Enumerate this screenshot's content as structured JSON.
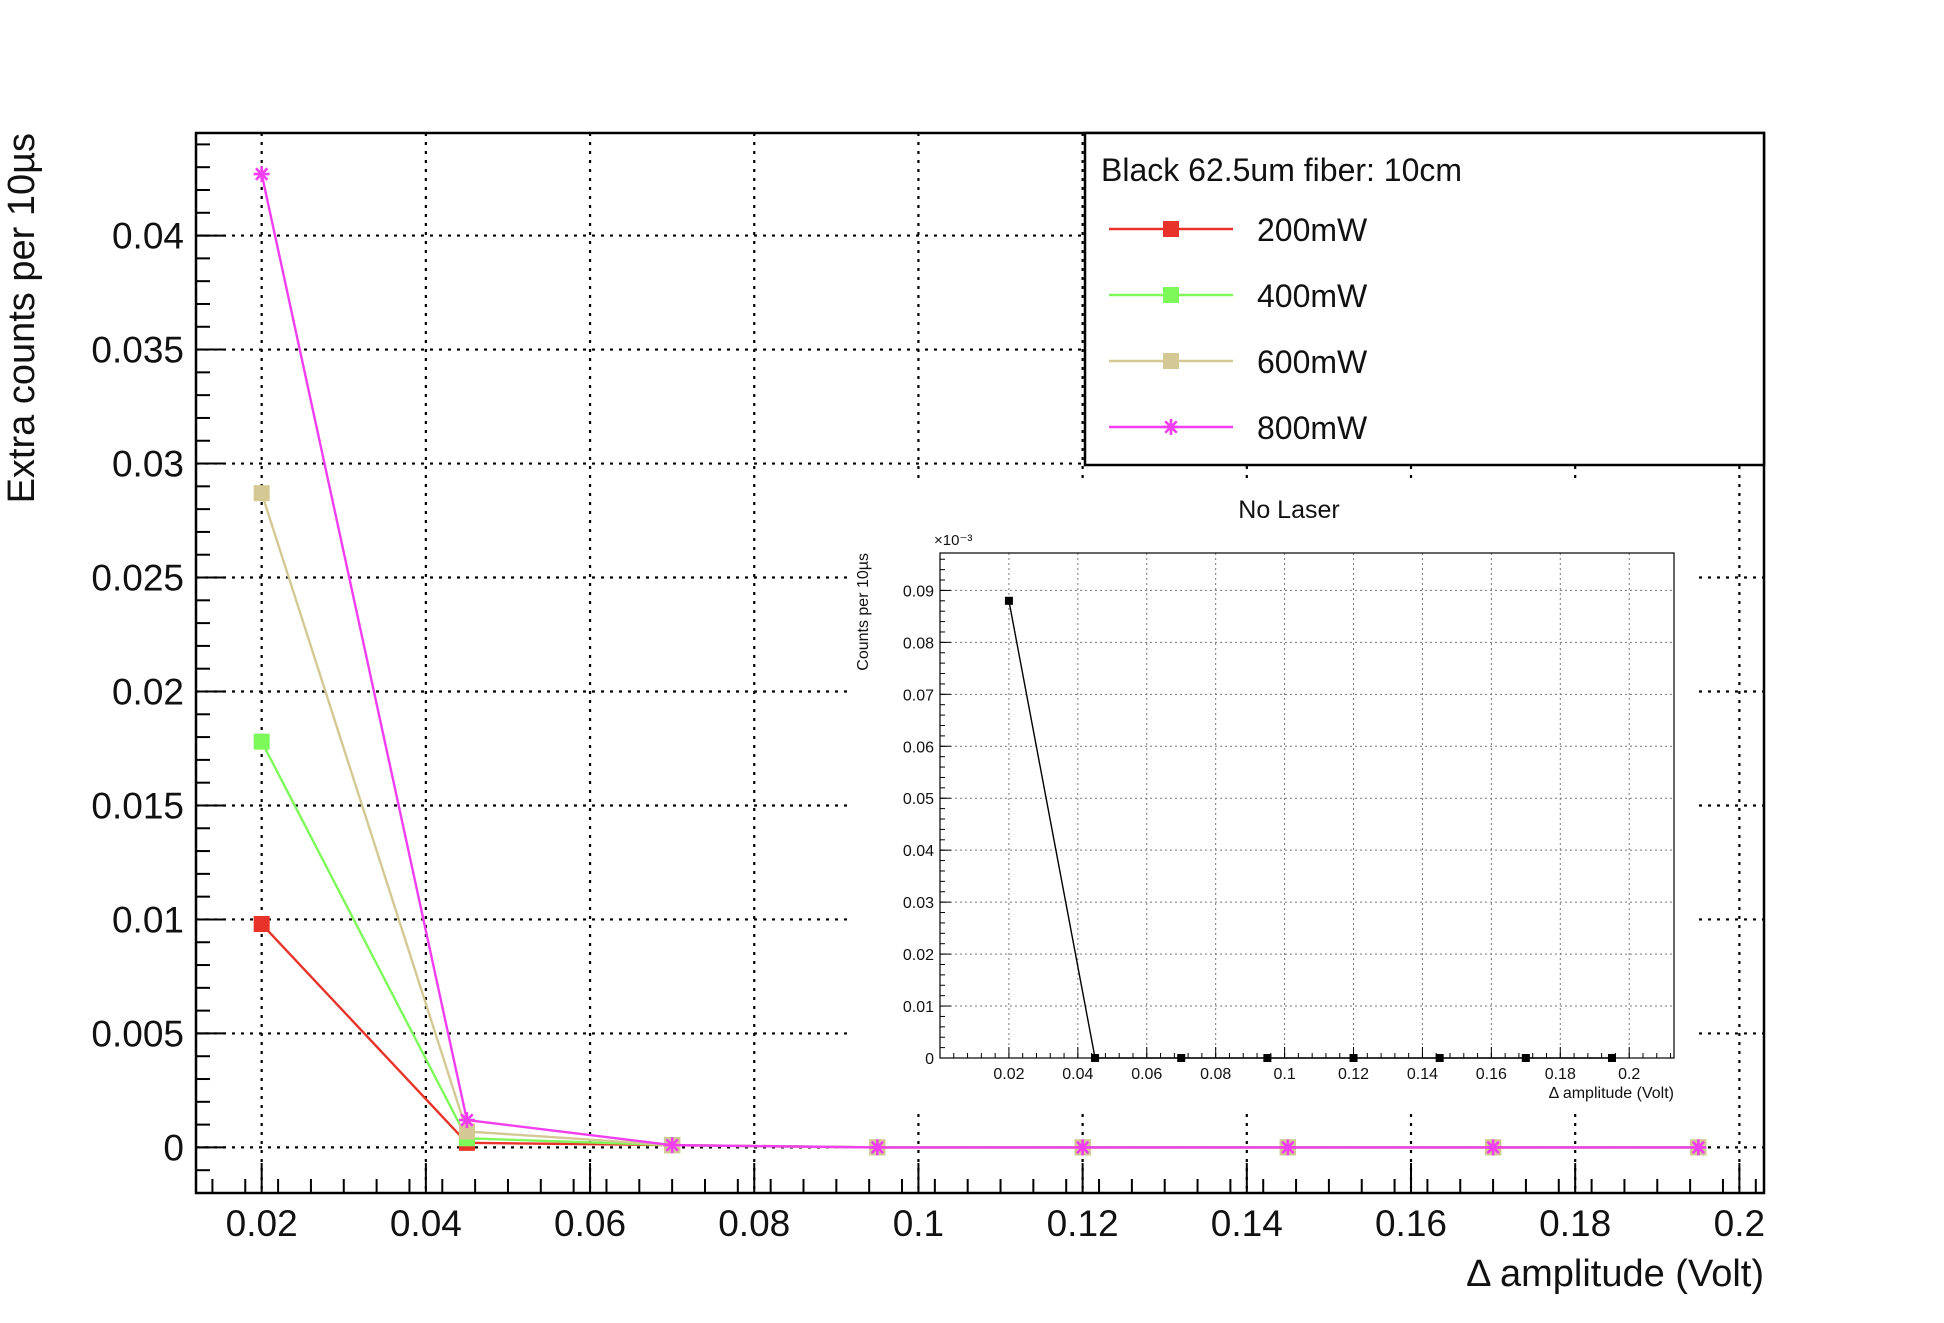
{
  "chart_data": [
    {
      "type": "line",
      "title": "",
      "xlabel": "Δ amplitude (Volt)",
      "ylabel": "Extra counts per 10µs",
      "xlim": [
        0.012,
        0.203
      ],
      "ylim": [
        -0.002,
        0.0445
      ],
      "x_ticks": [
        0.02,
        0.04,
        0.06,
        0.08,
        0.1,
        0.12,
        0.14,
        0.16,
        0.18,
        0.2
      ],
      "x_tick_labels": [
        "0.02",
        "0.04",
        "0.06",
        "0.08",
        "0.1",
        "0.12",
        "0.14",
        "0.16",
        "0.18",
        "0.2"
      ],
      "y_ticks": [
        0,
        0.005,
        0.01,
        0.015,
        0.02,
        0.025,
        0.03,
        0.035,
        0.04
      ],
      "y_tick_labels": [
        "0",
        "0.005",
        "0.01",
        "0.015",
        "0.02",
        "0.025",
        "0.03",
        "0.035",
        "0.04"
      ],
      "grid": true,
      "legend": {
        "title": "Black 62.5um fiber: 10cm",
        "position": "top-right"
      },
      "x": [
        0.02,
        0.045,
        0.07,
        0.095,
        0.12,
        0.145,
        0.17,
        0.195
      ],
      "series": [
        {
          "name": "200mW",
          "color": "#e8332a",
          "marker": "square",
          "values": [
            0.0098,
            0.0002,
            0.0001,
            0.0,
            0.0,
            0.0,
            0.0,
            0.0
          ]
        },
        {
          "name": "400mW",
          "color": "#7dfa5a",
          "marker": "square",
          "values": [
            0.0178,
            0.0004,
            0.0001,
            0.0,
            0.0,
            0.0,
            0.0,
            0.0
          ]
        },
        {
          "name": "600mW",
          "color": "#d4c994",
          "marker": "square",
          "values": [
            0.0287,
            0.0007,
            0.0001,
            0.0,
            0.0,
            0.0,
            0.0,
            0.0
          ]
        },
        {
          "name": "800mW",
          "color": "#f03ef0",
          "marker": "star",
          "values": [
            0.0427,
            0.0012,
            0.0001,
            0.0,
            0.0,
            0.0,
            0.0,
            0.0
          ]
        }
      ]
    },
    {
      "type": "line",
      "title": "No Laser",
      "xlabel": "Δ amplitude (Volt)",
      "ylabel": "Counts per 10µs",
      "y_multiplier": "×10⁻³",
      "xlim": [
        0.0,
        0.213
      ],
      "ylim": [
        0,
        9.72e-05
      ],
      "x_ticks": [
        0.02,
        0.04,
        0.06,
        0.08,
        0.1,
        0.12,
        0.14,
        0.16,
        0.18,
        0.2
      ],
      "x_tick_labels": [
        "0.02",
        "0.04",
        "0.06",
        "0.08",
        "0.1",
        "0.12",
        "0.14",
        "0.16",
        "0.18",
        "0.2"
      ],
      "y_ticks": [
        0,
        1e-05,
        2e-05,
        3e-05,
        4e-05,
        5e-05,
        6e-05,
        7e-05,
        8e-05,
        9e-05
      ],
      "y_tick_labels": [
        "0",
        "0.01",
        "0.02",
        "0.03",
        "0.04",
        "0.05",
        "0.06",
        "0.07",
        "0.08",
        "0.09"
      ],
      "grid": true,
      "x": [
        0.02,
        0.045,
        0.07,
        0.095,
        0.12,
        0.145,
        0.17,
        0.195
      ],
      "series": [
        {
          "color": "#000000",
          "marker": "square",
          "values": [
            8.8e-05,
            0.0,
            0.0,
            0.0,
            0.0,
            0.0,
            0.0,
            0.0
          ]
        }
      ]
    }
  ]
}
